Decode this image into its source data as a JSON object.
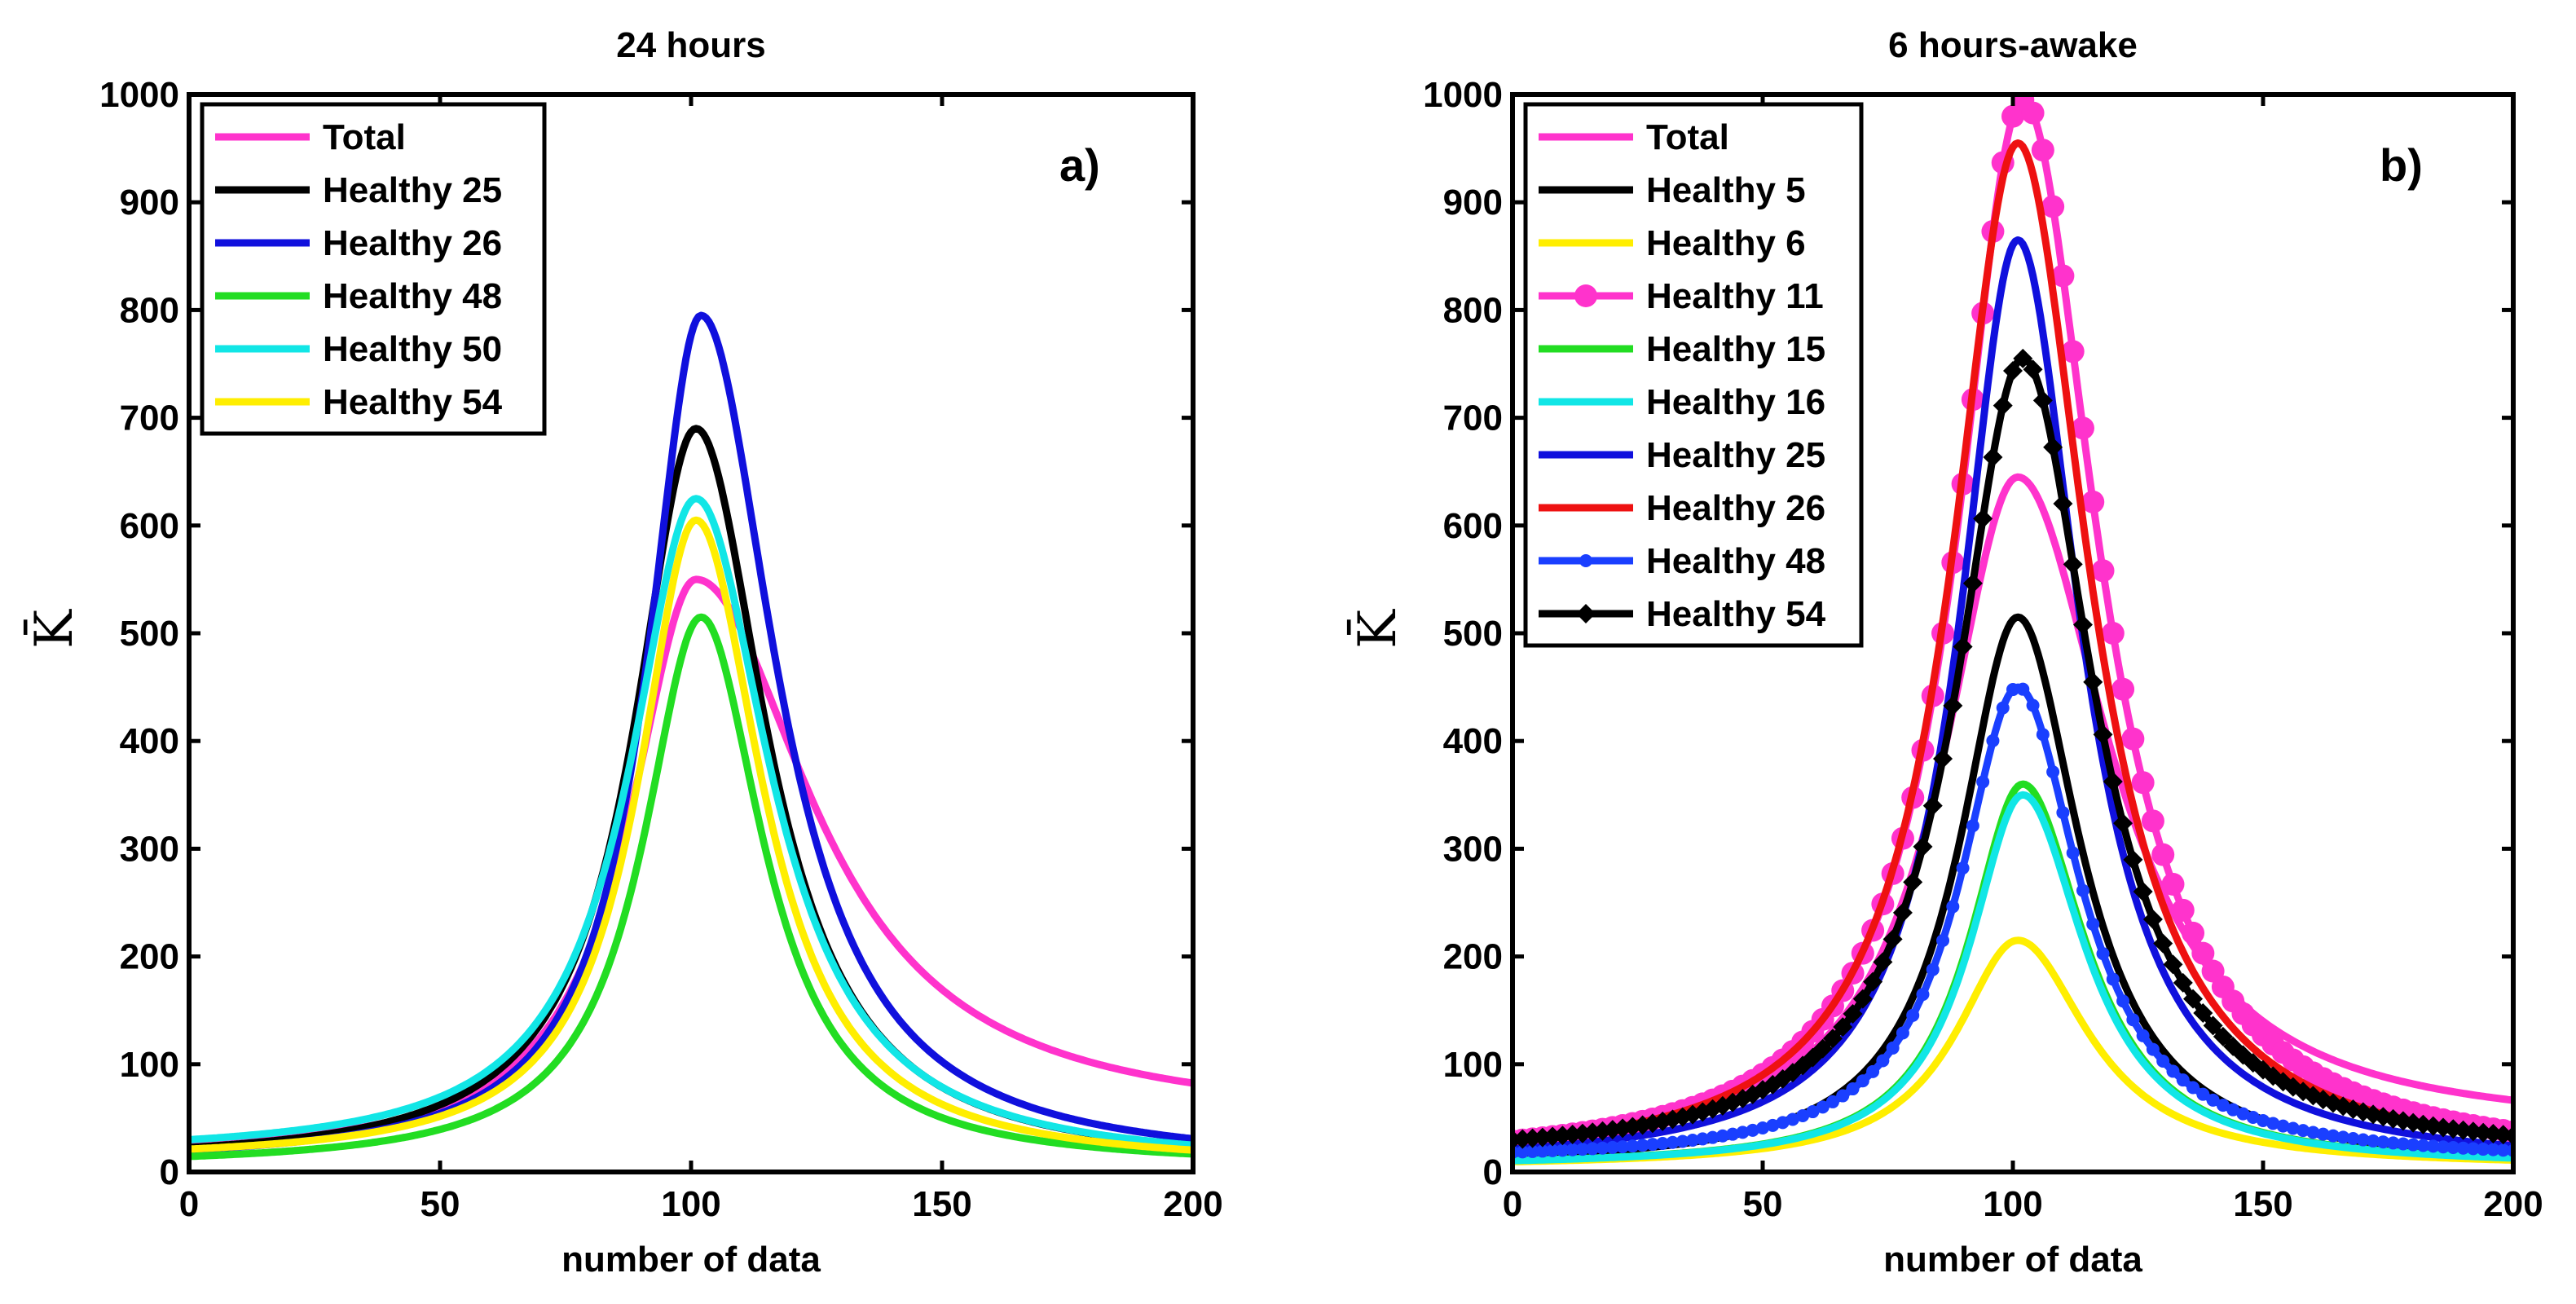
{
  "chart_data": [
    {
      "type": "line",
      "title": "24 hours",
      "panel_label": "a)",
      "xlabel": "number of data",
      "ylabel": "K̄",
      "xlim": [
        0,
        200
      ],
      "ylim": [
        0,
        1000
      ],
      "xticks": [
        0,
        50,
        100,
        150,
        200
      ],
      "yticks": [
        0,
        100,
        200,
        300,
        400,
        500,
        600,
        700,
        800,
        900,
        1000
      ],
      "legend_position": "top-left",
      "grid": false,
      "series": [
        {
          "name": "Total",
          "color": "#ff33cc",
          "marker": "none",
          "peak_x": 101,
          "peak": 550,
          "width_left": 16,
          "width_right": 28,
          "baseline_left": 12,
          "baseline_right": 45
        },
        {
          "name": "Healthy 25",
          "color": "#000000",
          "marker": "none",
          "peak_x": 101,
          "peak": 690,
          "width_left": 15,
          "width_right": 17,
          "baseline_left": 8,
          "baseline_right": 5
        },
        {
          "name": "Healthy 26",
          "color": "#1010dd",
          "marker": "none",
          "peak_x": 102,
          "peak": 795,
          "width_left": 13,
          "width_right": 18,
          "baseline_left": 8,
          "baseline_right": 5
        },
        {
          "name": "Healthy 48",
          "color": "#22dd22",
          "marker": "none",
          "peak_x": 102,
          "peak": 515,
          "width_left": 14,
          "width_right": 15,
          "baseline_left": 5,
          "baseline_right": 5
        },
        {
          "name": "Healthy 50",
          "color": "#11e6e6",
          "marker": "none",
          "peak_x": 101,
          "peak": 625,
          "width_left": 16,
          "width_right": 18,
          "baseline_left": 15,
          "baseline_right": 5
        },
        {
          "name": "Healthy 54",
          "color": "#ffee00",
          "marker": "none",
          "peak_x": 101,
          "peak": 605,
          "width_left": 14,
          "width_right": 16,
          "baseline_left": 10,
          "baseline_right": 5
        }
      ]
    },
    {
      "type": "line",
      "title": "6 hours-awake",
      "panel_label": "b)",
      "xlabel": "number of data",
      "ylabel": "K̄",
      "xlim": [
        0,
        200
      ],
      "ylim": [
        0,
        1000
      ],
      "xticks": [
        0,
        50,
        100,
        150,
        200
      ],
      "yticks": [
        0,
        100,
        200,
        300,
        400,
        500,
        600,
        700,
        800,
        900,
        1000
      ],
      "legend_position": "top-left",
      "grid": false,
      "series": [
        {
          "name": "Total",
          "color": "#ff33cc",
          "marker": "none",
          "peak_x": 101,
          "peak": 645,
          "width_left": 18,
          "width_right": 22,
          "baseline_left": 10,
          "baseline_right": 38
        },
        {
          "name": "Healthy 5",
          "color": "#000000",
          "marker": "none",
          "peak_x": 101,
          "peak": 515,
          "width_left": 14,
          "width_right": 15,
          "baseline_left": 5,
          "baseline_right": 5
        },
        {
          "name": "Healthy 6",
          "color": "#ffee00",
          "marker": "none",
          "peak_x": 101,
          "peak": 215,
          "width_left": 15,
          "width_right": 17,
          "baseline_left": 5,
          "baseline_right": 5
        },
        {
          "name": "Healthy 11",
          "color": "#ff33cc",
          "marker": "circle",
          "peak_x": 102,
          "peak": 995,
          "width_left": 16,
          "width_right": 18,
          "baseline_left": 5,
          "baseline_right": 5
        },
        {
          "name": "Healthy 15",
          "color": "#22dd22",
          "marker": "none",
          "peak_x": 102,
          "peak": 360,
          "width_left": 13,
          "width_right": 15,
          "baseline_left": 5,
          "baseline_right": 5
        },
        {
          "name": "Healthy 16",
          "color": "#11e6e6",
          "marker": "none",
          "peak_x": 102,
          "peak": 350,
          "width_left": 13,
          "width_right": 15,
          "baseline_left": 5,
          "baseline_right": 5
        },
        {
          "name": "Healthy 25",
          "color": "#1010dd",
          "marker": "none",
          "peak_x": 101,
          "peak": 865,
          "width_left": 14,
          "width_right": 15,
          "baseline_left": 5,
          "baseline_right": 5
        },
        {
          "name": "Healthy 26",
          "color": "#ee1111",
          "marker": "none",
          "peak_x": 101,
          "peak": 955,
          "width_left": 16,
          "width_right": 17,
          "baseline_left": 5,
          "baseline_right": 5
        },
        {
          "name": "Healthy 48",
          "color": "#1a3fff",
          "marker": "dot",
          "peak_x": 101,
          "peak": 450,
          "width_left": 14,
          "width_right": 15,
          "baseline_left": 10,
          "baseline_right": 10
        },
        {
          "name": "Healthy 54",
          "color": "#000000",
          "marker": "diamond",
          "peak_x": 102,
          "peak": 755,
          "width_left": 16,
          "width_right": 17,
          "baseline_left": 12,
          "baseline_right": 12
        }
      ]
    }
  ]
}
